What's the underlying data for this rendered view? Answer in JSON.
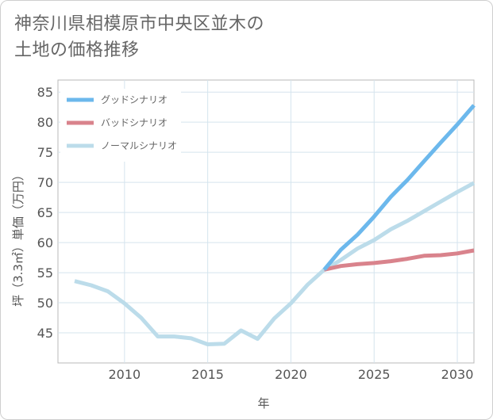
{
  "chart_data": {
    "type": "line",
    "title_lines": [
      "神奈川県相模原市中央区並木の",
      "土地の価格推移"
    ],
    "xlabel": "年",
    "ylabel": "坪（3.3㎡）単価（万円）",
    "xlim": [
      2006,
      2031
    ],
    "ylim": [
      40,
      87
    ],
    "xticks": [
      2010,
      2015,
      2020,
      2025,
      2030
    ],
    "yticks": [
      45,
      50,
      55,
      60,
      65,
      70,
      75,
      80,
      85
    ],
    "grid": true,
    "legend_position": "top-left",
    "series": [
      {
        "name": "グッドシナリオ",
        "color": "#6cb8ec",
        "x": [
          2022,
          2023,
          2024,
          2025,
          2026,
          2027,
          2028,
          2029,
          2030,
          2031
        ],
        "values": [
          55.5,
          58.8,
          61.3,
          64.3,
          67.6,
          70.4,
          73.5,
          76.6,
          79.6,
          82.8
        ]
      },
      {
        "name": "バッドシナリオ",
        "color": "#d9838c",
        "x": [
          2022,
          2023,
          2024,
          2025,
          2026,
          2027,
          2028,
          2029,
          2030,
          2031
        ],
        "values": [
          55.5,
          56.1,
          56.4,
          56.6,
          56.9,
          57.3,
          57.8,
          57.9,
          58.2,
          58.7
        ]
      },
      {
        "name": "ノーマルシナリオ",
        "color": "#bcdcea",
        "x": [
          2007,
          2008,
          2009,
          2010,
          2011,
          2012,
          2013,
          2014,
          2015,
          2016,
          2017,
          2018,
          2019,
          2020,
          2021,
          2022,
          2023,
          2024,
          2025,
          2026,
          2027,
          2028,
          2029,
          2030,
          2031
        ],
        "values": [
          53.6,
          52.9,
          51.9,
          49.9,
          47.5,
          44.4,
          44.4,
          44.1,
          43.1,
          43.2,
          45.4,
          44.0,
          47.4,
          49.9,
          53.0,
          55.5,
          57.1,
          59.0,
          60.4,
          62.2,
          63.6,
          65.2,
          66.8,
          68.4,
          69.9
        ]
      }
    ]
  }
}
